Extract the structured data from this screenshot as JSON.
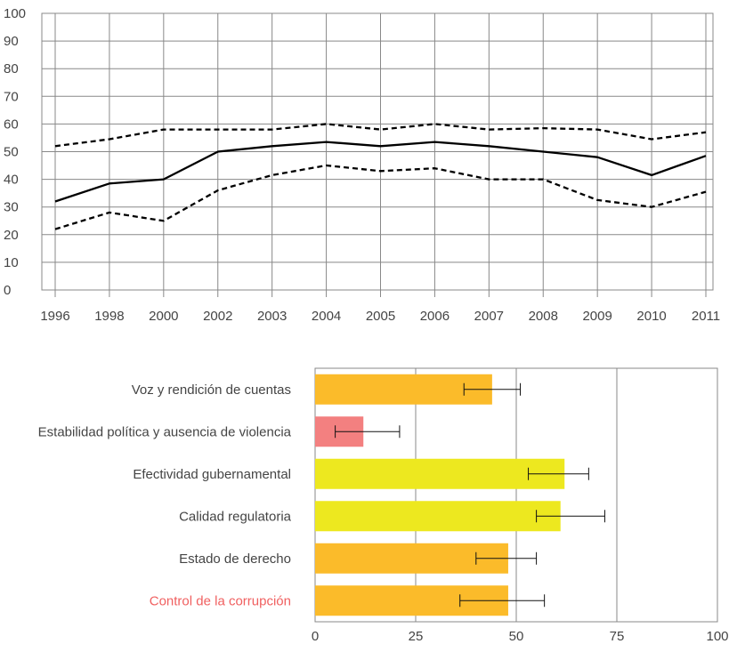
{
  "chart_data": [
    {
      "type": "line",
      "x": [
        "1996",
        "1998",
        "2000",
        "2002",
        "2003",
        "2004",
        "2005",
        "2006",
        "2007",
        "2008",
        "2009",
        "2010",
        "2011"
      ],
      "series": [
        {
          "style": "dashed",
          "values": [
            52,
            54.5,
            58,
            58,
            58,
            60,
            58,
            60,
            58,
            58.5,
            58,
            54.5,
            57
          ]
        },
        {
          "style": "solid",
          "values": [
            32,
            38.5,
            40,
            50,
            52,
            53.5,
            52,
            53.5,
            52,
            50,
            48,
            41.5,
            48.5
          ]
        },
        {
          "style": "dashed",
          "values": [
            22,
            28,
            25,
            36,
            41.5,
            45,
            43,
            44,
            40,
            40,
            32.5,
            30,
            35.5
          ]
        }
      ],
      "ylim": [
        0,
        100
      ],
      "yticks": [
        "0",
        "10",
        "20",
        "30",
        "40",
        "50",
        "60",
        "70",
        "80",
        "90",
        "100"
      ],
      "grid": true,
      "colors": {
        "line": "#000000",
        "grid": "#888888"
      }
    },
    {
      "type": "bar",
      "orientation": "horizontal",
      "categories": [
        "Voz y rendición de cuentas",
        "Estabilidad política y ausencia de violencia",
        "Efectividad gubernamental",
        "Calidad regulatoria",
        "Estado de derecho",
        "Control de la corrupción"
      ],
      "values": [
        44,
        12,
        62,
        61,
        48,
        48
      ],
      "error_low": [
        37,
        5,
        53,
        55,
        40,
        36
      ],
      "error_high": [
        51,
        21,
        68,
        72,
        55,
        57
      ],
      "bar_colors": [
        "#fbbb2a",
        "#f38080",
        "#ede81f",
        "#ede81f",
        "#fbbb2a",
        "#fbbb2a"
      ],
      "label_colors": [
        "#444444",
        "#444444",
        "#444444",
        "#444444",
        "#444444",
        "#f06060"
      ],
      "xlim": [
        0,
        100
      ],
      "xticks": [
        "0",
        "25",
        "50",
        "75",
        "100"
      ],
      "grid": true
    }
  ]
}
